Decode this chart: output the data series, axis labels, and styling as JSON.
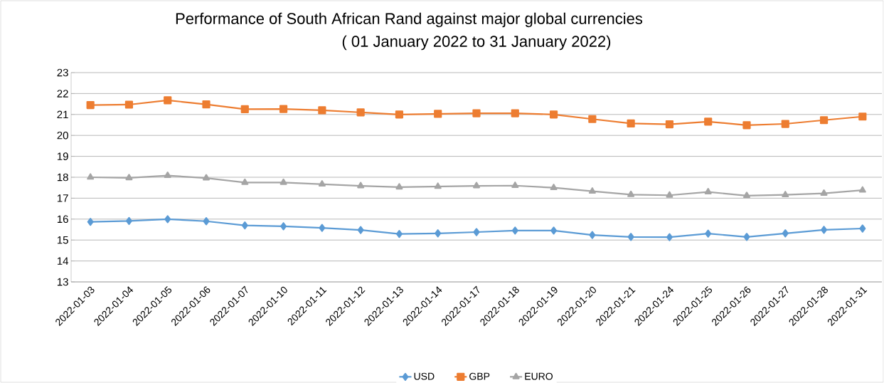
{
  "chart_data": {
    "type": "line",
    "title": "Performance of South African Rand against major global currencies",
    "subtitle": "( 01 January 2022 to 31 January 2022)",
    "categories": [
      "2022-01-03",
      "2022-01-04",
      "2022-01-05",
      "2022-01-06",
      "2022-01-07",
      "2022-01-10",
      "2022-01-11",
      "2022-01-12",
      "2022-01-13",
      "2022-01-14",
      "2022-01-17",
      "2022-01-18",
      "2022-01-19",
      "2022-01-20",
      "2022-01-21",
      "2022-01-24",
      "2022-01-25",
      "2022-01-26",
      "2022-01-27",
      "2022-01-28",
      "2022-01-31"
    ],
    "series": [
      {
        "name": "USD",
        "color": "#5b9bd5",
        "marker": "diamond",
        "values": [
          15.87,
          15.91,
          16.0,
          15.9,
          15.7,
          15.66,
          15.58,
          15.48,
          15.29,
          15.32,
          15.38,
          15.45,
          15.45,
          15.24,
          15.15,
          15.14,
          15.31,
          15.15,
          15.32,
          15.49,
          15.55
        ]
      },
      {
        "name": "GBP",
        "color": "#ed7d31",
        "marker": "square",
        "values": [
          21.45,
          21.47,
          21.68,
          21.48,
          21.25,
          21.26,
          21.2,
          21.1,
          21.0,
          21.03,
          21.06,
          21.06,
          21.0,
          20.78,
          20.57,
          20.53,
          20.66,
          20.49,
          20.55,
          20.73,
          20.9
        ]
      },
      {
        "name": "EURO",
        "color": "#a5a5a5",
        "marker": "triangle",
        "values": [
          18.0,
          17.97,
          18.08,
          17.96,
          17.75,
          17.75,
          17.67,
          17.59,
          17.53,
          17.56,
          17.59,
          17.6,
          17.5,
          17.33,
          17.17,
          17.14,
          17.3,
          17.12,
          17.16,
          17.23,
          17.38
        ]
      }
    ],
    "ylim": [
      13,
      23
    ],
    "yticks": [
      13,
      14,
      15,
      16,
      17,
      18,
      19,
      20,
      21,
      22,
      23
    ],
    "grid": "y",
    "legend": "bottom",
    "line_style": "solid"
  }
}
